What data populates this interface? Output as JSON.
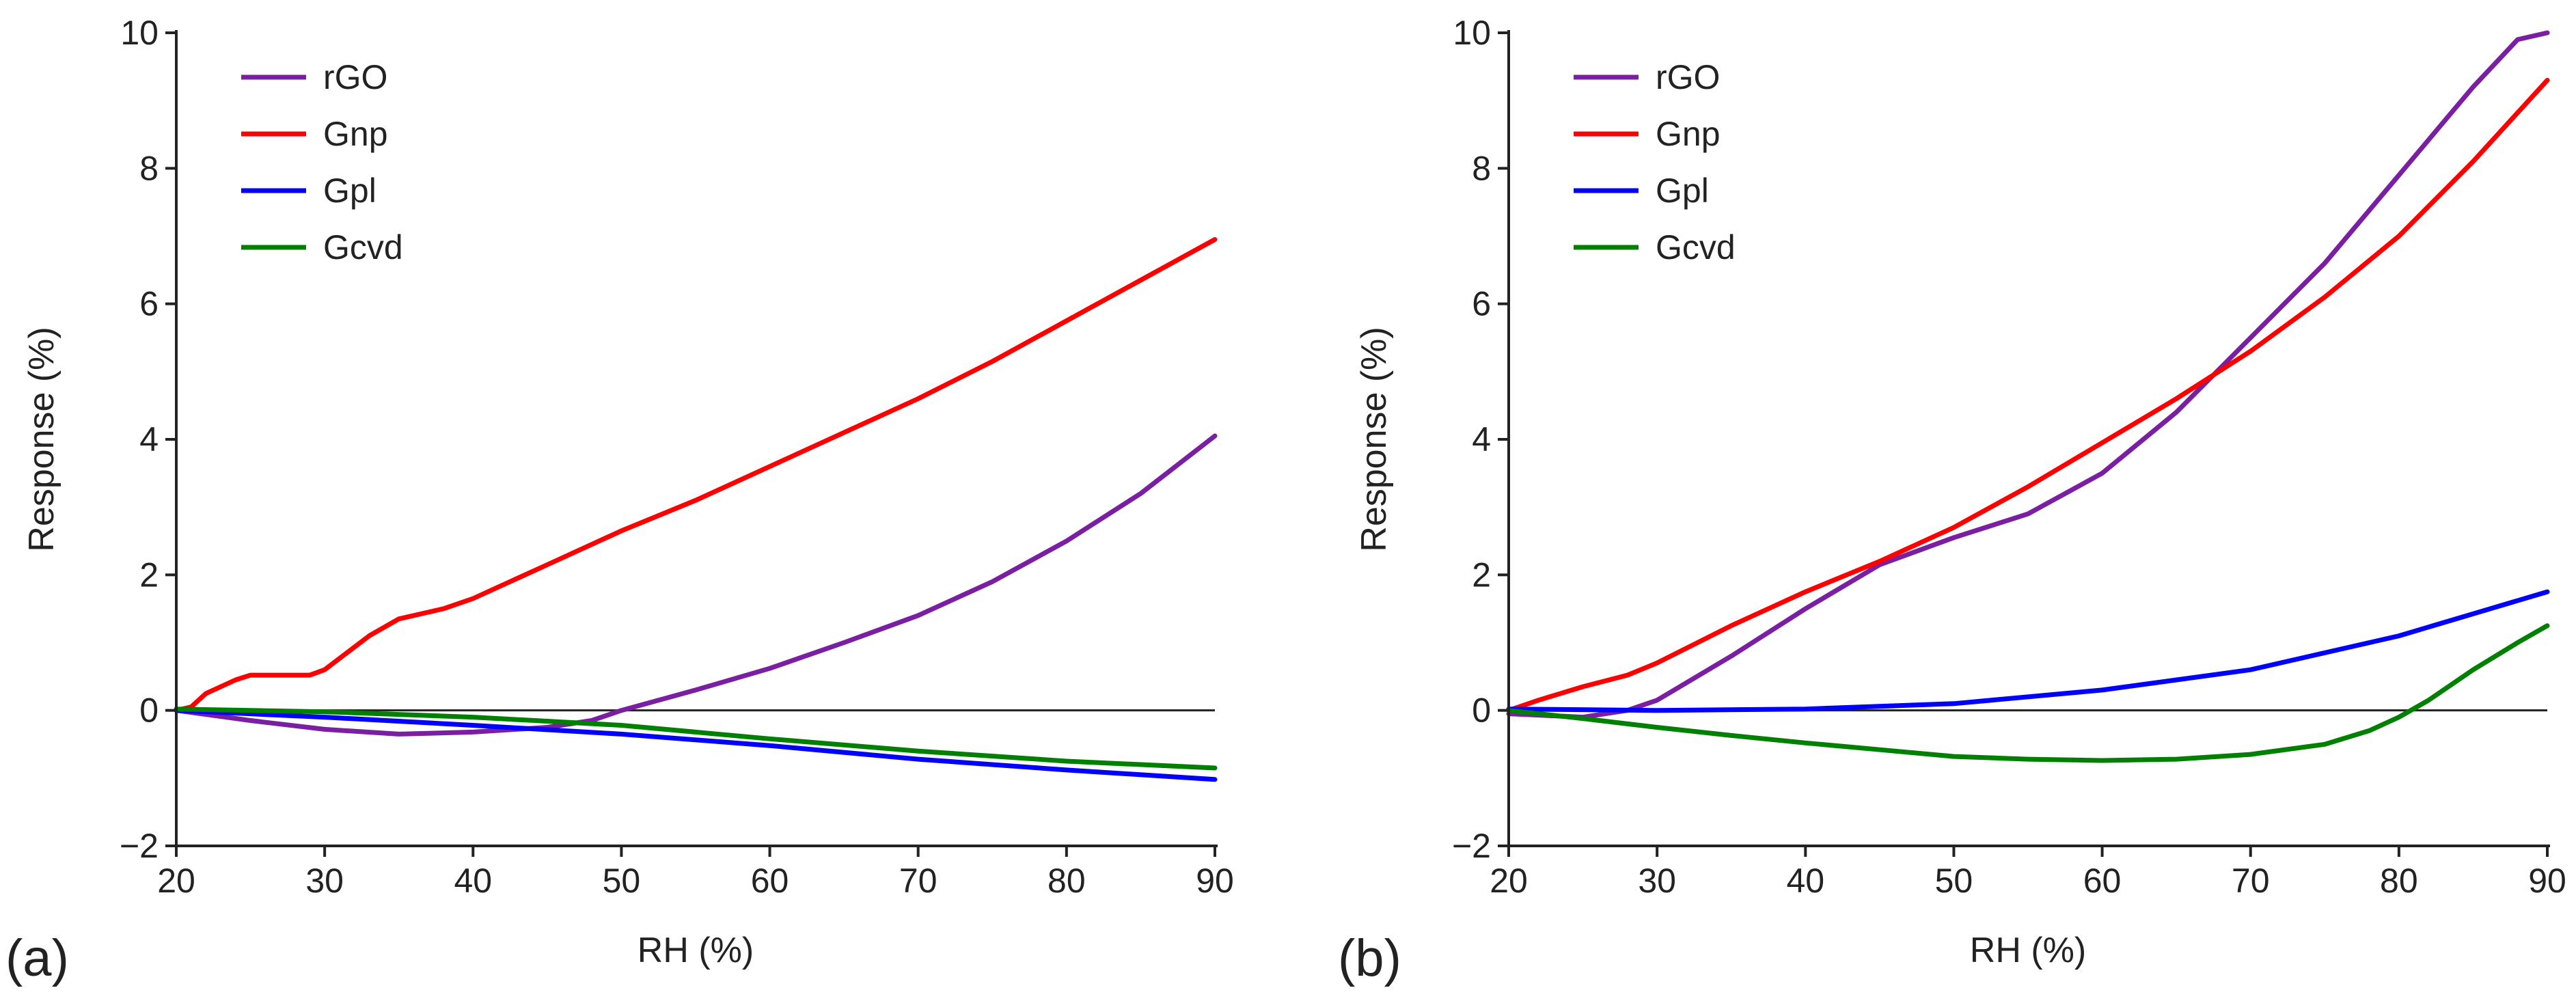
{
  "chart_data": [
    {
      "type": "line",
      "panel_label": "(a)",
      "xlabel": "RH (%)",
      "ylabel": "Response (%)",
      "xlim": [
        20,
        90
      ],
      "ylim": [
        -2,
        10
      ],
      "xticks": [
        20,
        30,
        40,
        50,
        60,
        70,
        80,
        90
      ],
      "yticks": [
        -2,
        0,
        2,
        4,
        6,
        8,
        10
      ],
      "xtick_labels": [
        "20",
        "30",
        "40",
        "50",
        "60",
        "70",
        "80",
        "90"
      ],
      "ytick_labels": [
        "−2",
        "0",
        "2",
        "4",
        "6",
        "8",
        "10"
      ],
      "zero_line": true,
      "legend_position": "top-left",
      "series": [
        {
          "name": "rGO",
          "color": "#7b1fa2",
          "x": [
            20,
            25,
            30,
            35,
            40,
            45,
            48,
            50,
            55,
            60,
            65,
            70,
            75,
            80,
            85,
            90
          ],
          "y": [
            0,
            -0.15,
            -0.28,
            -0.35,
            -0.32,
            -0.25,
            -0.15,
            0.0,
            0.3,
            0.62,
            1.0,
            1.4,
            1.9,
            2.5,
            3.2,
            4.05
          ]
        },
        {
          "name": "Gnp",
          "color": "#ff0000",
          "x": [
            20,
            21,
            22,
            24,
            25,
            27,
            29,
            30,
            33,
            35,
            37,
            38,
            40,
            45,
            50,
            55,
            60,
            65,
            70,
            75,
            80,
            85,
            90
          ],
          "y": [
            0,
            0.05,
            0.25,
            0.45,
            0.52,
            0.52,
            0.52,
            0.6,
            1.1,
            1.35,
            1.45,
            1.5,
            1.65,
            2.15,
            2.65,
            3.1,
            3.6,
            4.1,
            4.6,
            5.15,
            5.75,
            6.35,
            6.95
          ]
        },
        {
          "name": "Gpl",
          "color": "#0000ff",
          "x": [
            20,
            30,
            40,
            50,
            60,
            70,
            80,
            90
          ],
          "y": [
            0,
            -0.1,
            -0.22,
            -0.35,
            -0.52,
            -0.72,
            -0.88,
            -1.02
          ]
        },
        {
          "name": "Gcvd",
          "color": "#008000",
          "x": [
            20,
            30,
            40,
            50,
            60,
            70,
            80,
            90
          ],
          "y": [
            0.02,
            -0.02,
            -0.1,
            -0.22,
            -0.42,
            -0.6,
            -0.75,
            -0.85
          ]
        }
      ]
    },
    {
      "type": "line",
      "panel_label": "(b)",
      "xlabel": "RH (%)",
      "ylabel": "Response (%)",
      "xlim": [
        20,
        90
      ],
      "ylim": [
        -2,
        10
      ],
      "xticks": [
        20,
        30,
        40,
        50,
        60,
        70,
        80,
        90
      ],
      "yticks": [
        -2,
        0,
        2,
        4,
        6,
        8,
        10
      ],
      "xtick_labels": [
        "20",
        "30",
        "40",
        "50",
        "60",
        "70",
        "80",
        "90"
      ],
      "ytick_labels": [
        "−2",
        "0",
        "2",
        "4",
        "6",
        "8",
        "10"
      ],
      "zero_line": true,
      "legend_position": "top-left",
      "series": [
        {
          "name": "rGO",
          "color": "#7b1fa2",
          "x": [
            20,
            25,
            28,
            30,
            35,
            40,
            45,
            50,
            55,
            60,
            65,
            70,
            75,
            80,
            85,
            88,
            90
          ],
          "y": [
            -0.05,
            -0.1,
            0.0,
            0.15,
            0.8,
            1.5,
            2.15,
            2.55,
            2.9,
            3.5,
            4.4,
            5.5,
            6.6,
            7.9,
            9.2,
            9.9,
            10.0
          ]
        },
        {
          "name": "Gnp",
          "color": "#ff0000",
          "x": [
            20,
            22,
            25,
            28,
            30,
            35,
            40,
            45,
            50,
            55,
            60,
            65,
            70,
            75,
            80,
            85,
            90
          ],
          "y": [
            0,
            0.15,
            0.35,
            0.52,
            0.7,
            1.25,
            1.75,
            2.2,
            2.7,
            3.3,
            3.95,
            4.6,
            5.3,
            6.1,
            7.0,
            8.1,
            9.3
          ]
        },
        {
          "name": "Gpl",
          "color": "#0000ff",
          "x": [
            20,
            30,
            40,
            50,
            60,
            70,
            80,
            90
          ],
          "y": [
            0.02,
            0.0,
            0.02,
            0.1,
            0.3,
            0.6,
            1.1,
            1.75
          ]
        },
        {
          "name": "Gcvd",
          "color": "#008000",
          "x": [
            20,
            25,
            30,
            35,
            40,
            45,
            50,
            55,
            60,
            65,
            70,
            75,
            78,
            80,
            82,
            85,
            88,
            90
          ],
          "y": [
            0,
            -0.12,
            -0.25,
            -0.37,
            -0.48,
            -0.58,
            -0.68,
            -0.72,
            -0.74,
            -0.72,
            -0.65,
            -0.5,
            -0.3,
            -0.1,
            0.15,
            0.6,
            1.0,
            1.25
          ]
        }
      ]
    }
  ]
}
